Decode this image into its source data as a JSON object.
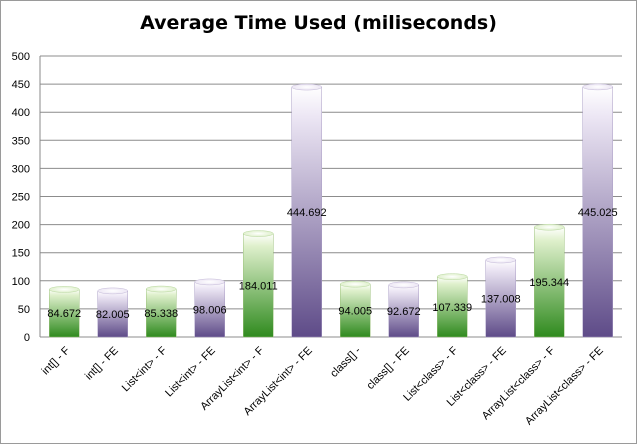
{
  "chart_data": {
    "type": "bar",
    "title": "Average Time Used (miliseconds)",
    "xlabel": "",
    "ylabel": "",
    "ylim": [
      0,
      500
    ],
    "yticks": [
      0,
      50,
      100,
      150,
      200,
      250,
      300,
      350,
      400,
      450,
      500
    ],
    "grid": true,
    "legend": "none",
    "categories": [
      "int[] - F",
      "int[] - FE",
      "List<int> - F",
      "List<int> - FE",
      "ArrayList<int> - F",
      "ArrayList<int> - FE",
      "class[] -",
      "class[] - FE",
      "List<class> - F",
      "List<class> - FE",
      "ArrayList<class> - F",
      "ArrayList<class> - FE"
    ],
    "values": [
      84.672,
      82.005,
      85.338,
      98.006,
      184.011,
      444.692,
      94.005,
      92.672,
      107.339,
      137.008,
      195.344,
      445.025
    ],
    "data_labels": [
      "84.672",
      "82.005",
      "85.338",
      "98.006",
      "184.011",
      "444.692",
      "94.005",
      "92.672",
      "107.339",
      "137.008",
      "195.344",
      "445.025"
    ],
    "bar_colors": [
      "green",
      "purple",
      "green",
      "purple",
      "green",
      "purple",
      "green",
      "purple",
      "green",
      "purple",
      "green",
      "purple"
    ],
    "palette": {
      "green_light": "#dff0cc",
      "green_dark": "#2f8a1e",
      "purple_light": "#ece6f4",
      "purple_dark": "#5e4b88",
      "gridline": "#8c8c8c",
      "axis": "#888888"
    }
  }
}
